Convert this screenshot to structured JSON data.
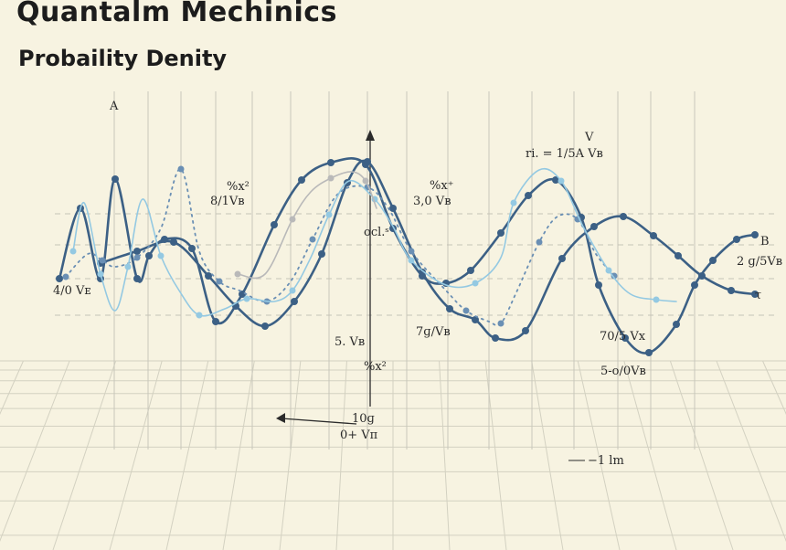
{
  "chart_data": {
    "type": "line",
    "title": "Quantalm Mechinics",
    "subtitle": "Probaility Denity",
    "grid": true,
    "colors": {
      "dark": "#3c6085",
      "mid": "#6a8fb4",
      "light": "#94c9e2",
      "gray": "#b9b9b9"
    },
    "annotations": [
      {
        "id": "ann-a",
        "text": "A"
      },
      {
        "id": "ann-8",
        "text": "8/1Vʙ"
      },
      {
        "id": "ann-8sup",
        "text": "%x²"
      },
      {
        "id": "ann-3",
        "text": "3,0 Vʙ"
      },
      {
        "id": "ann-3sup",
        "text": "%x⁺"
      },
      {
        "id": "ann-ri",
        "text": "ri. = 1/5A Vʙ"
      },
      {
        "id": "ann-v",
        "text": "V"
      },
      {
        "id": "ann-b",
        "text": "B"
      },
      {
        "id": "ann-29",
        "text": "2 ɡ/5Vʙ"
      },
      {
        "id": "ann-tau",
        "text": "τ"
      },
      {
        "id": "ann-4",
        "text": "4/0 Vᴇ"
      },
      {
        "id": "ann-5",
        "text": "5. Vʙ"
      },
      {
        "id": "ann-pct",
        "text": "%x²"
      },
      {
        "id": "ann-ocl",
        "text": "ocl.ˢ"
      },
      {
        "id": "ann-7",
        "text": "7ɡ/Vʙ"
      },
      {
        "id": "ann-70",
        "text": "70/5 Vx"
      },
      {
        "id": "ann-50",
        "text": "5-o/0Vʙ"
      },
      {
        "id": "ann-10",
        "text": "10ɡ"
      },
      {
        "id": "ann-0v",
        "text": "0+ Vᴨ"
      },
      {
        "id": "ann-11",
        "text": "−1 lm"
      }
    ],
    "series": [
      {
        "id": "s1",
        "color": "dark",
        "points": [
          [
            65,
            305
          ],
          [
            88,
            228
          ],
          [
            110,
            305
          ],
          [
            126,
            196
          ],
          [
            150,
            305
          ],
          [
            163,
            280
          ],
          [
            180,
            262
          ],
          [
            210,
            272
          ],
          [
            236,
            352
          ],
          [
            265,
            322
          ],
          [
            300,
            246
          ],
          [
            330,
            197
          ],
          [
            362,
            178
          ],
          [
            400,
            180
          ],
          [
            430,
            250
          ],
          [
            462,
            302
          ],
          [
            488,
            310
          ],
          [
            515,
            296
          ],
          [
            548,
            255
          ],
          [
            578,
            214
          ],
          [
            608,
            197
          ],
          [
            636,
            238
          ],
          [
            655,
            312
          ],
          [
            684,
            370
          ],
          [
            710,
            386
          ],
          [
            740,
            355
          ],
          [
            760,
            312
          ],
          [
            780,
            285
          ],
          [
            806,
            262
          ],
          [
            826,
            257
          ]
        ]
      },
      {
        "id": "s2",
        "color": "dark",
        "points": [
          [
            110,
            288
          ],
          [
            150,
            275
          ],
          [
            190,
            265
          ],
          [
            228,
            302
          ],
          [
            258,
            335
          ],
          [
            290,
            357
          ],
          [
            322,
            330
          ],
          [
            352,
            278
          ],
          [
            380,
            200
          ],
          [
            402,
            177
          ],
          [
            430,
            228
          ],
          [
            462,
            298
          ],
          [
            492,
            338
          ],
          [
            520,
            350
          ],
          [
            542,
            370
          ],
          [
            575,
            362
          ],
          [
            615,
            283
          ],
          [
            650,
            248
          ],
          [
            682,
            237
          ],
          [
            715,
            258
          ],
          [
            742,
            280
          ],
          [
            768,
            302
          ],
          [
            800,
            318
          ],
          [
            826,
            322
          ]
        ]
      },
      {
        "id": "s3",
        "color": "mid",
        "points": [
          [
            72,
            303
          ],
          [
            96,
            278
          ],
          [
            112,
            285
          ],
          [
            126,
            292
          ],
          [
            150,
            282
          ],
          [
            176,
            250
          ],
          [
            198,
            185
          ],
          [
            218,
            275
          ],
          [
            240,
            308
          ],
          [
            262,
            318
          ],
          [
            292,
            330
          ],
          [
            318,
            308
          ],
          [
            342,
            262
          ],
          [
            370,
            212
          ],
          [
            402,
            205
          ],
          [
            425,
            228
          ],
          [
            450,
            275
          ],
          [
            488,
            318
          ],
          [
            510,
            340
          ],
          [
            535,
            352
          ],
          [
            548,
            354
          ],
          [
            565,
            320
          ],
          [
            590,
            265
          ],
          [
            610,
            237
          ],
          [
            632,
            240
          ],
          [
            652,
            278
          ],
          [
            672,
            302
          ]
        ]
      },
      {
        "id": "s4",
        "color": "light",
        "points": [
          [
            80,
            275
          ],
          [
            92,
            222
          ],
          [
            110,
            300
          ],
          [
            126,
            340
          ],
          [
            140,
            292
          ],
          [
            156,
            218
          ],
          [
            176,
            280
          ],
          [
            196,
            318
          ],
          [
            218,
            345
          ],
          [
            246,
            338
          ],
          [
            270,
            327
          ],
          [
            300,
            330
          ],
          [
            320,
            318
          ],
          [
            340,
            282
          ],
          [
            360,
            235
          ],
          [
            382,
            198
          ],
          [
            410,
            218
          ],
          [
            430,
            248
          ],
          [
            450,
            285
          ],
          [
            488,
            312
          ],
          [
            520,
            310
          ],
          [
            548,
            282
          ],
          [
            562,
            222
          ],
          [
            590,
            186
          ],
          [
            614,
            198
          ],
          [
            638,
            248
          ],
          [
            666,
            296
          ],
          [
            690,
            322
          ],
          [
            718,
            328
          ],
          [
            740,
            330
          ]
        ]
      },
      {
        "id": "s5",
        "color": "gray",
        "points": [
          [
            260,
            300
          ],
          [
            290,
            300
          ],
          [
            320,
            240
          ],
          [
            340,
            210
          ],
          [
            362,
            195
          ],
          [
            385,
            188
          ],
          [
            400,
            198
          ],
          [
            412,
            228
          ]
        ]
      }
    ]
  }
}
